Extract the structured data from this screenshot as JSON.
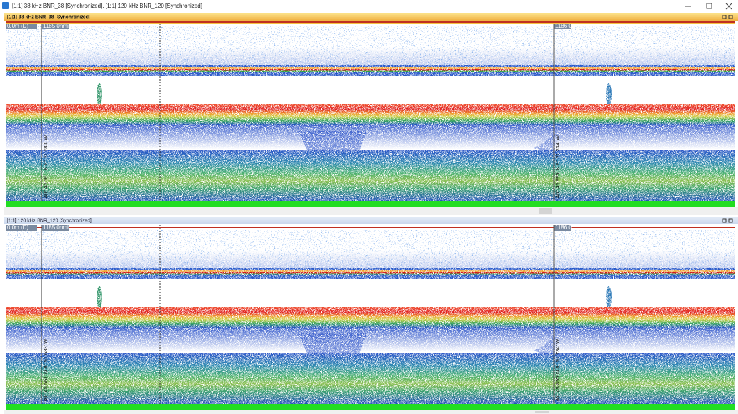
{
  "window": {
    "title": "[1:1] 38 kHz BNR_38 [Synchronized], [1:1] 120 kHz BNR_120 [Synchronized]"
  },
  "panels": [
    {
      "header": "[1:1] 38 kHz BNR_38 [Synchronized]",
      "depth_label": "0.0m (D)",
      "distance_start": "1185.0nmi",
      "distance_mark": "1186.0",
      "position_left": "40° 45.561' N 8° 51.683' W",
      "position_right": "40° 45.895' N 8° 51.734' W"
    },
    {
      "header": "[1:1] 120 kHz BNR_120 [Synchronized]",
      "depth_label": "0.0m (D)",
      "distance_start": "1185.0nmi",
      "distance_mark": "1186.0",
      "position_left": "40° 45.561' N 8° 51.683' W",
      "position_right": "40° 45.895' N 8° 51.734' W"
    }
  ]
}
